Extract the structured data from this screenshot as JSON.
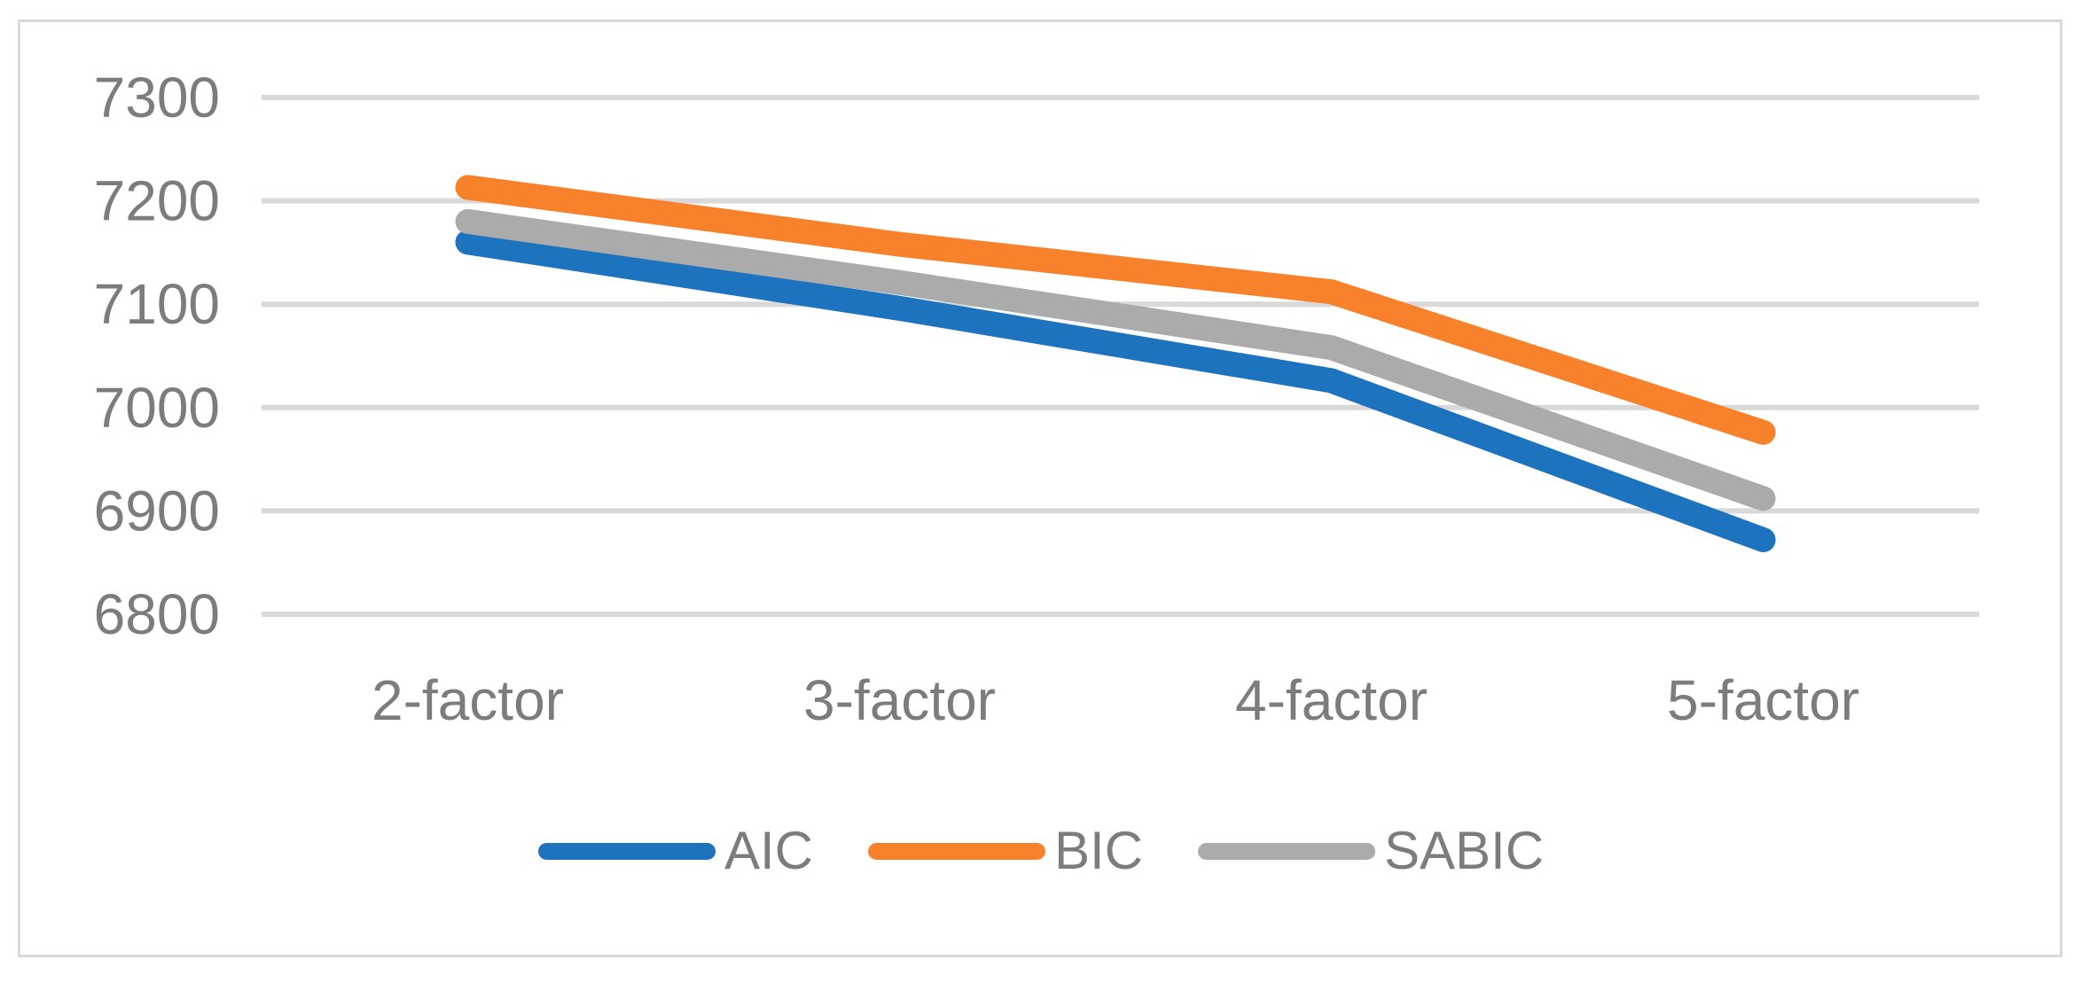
{
  "figure": {
    "background_color": "#FFFFFF",
    "border_color": "#D9D9D9",
    "title": ""
  },
  "chart_data": {
    "type": "line",
    "categories": [
      "2-factor",
      "3-factor",
      "4-factor",
      "5-factor"
    ],
    "series": [
      {
        "name": "AIC",
        "color": "#1E73BE",
        "values": [
          7160,
          7096,
          7026,
          6872
        ]
      },
      {
        "name": "BIC",
        "color": "#F8812B",
        "values": [
          7213,
          7158,
          7112,
          6976
        ]
      },
      {
        "name": "SABIC",
        "color": "#ABABAB",
        "values": [
          7180,
          7121,
          7058,
          6912
        ]
      }
    ],
    "title": "",
    "xlabel": "",
    "ylabel": "",
    "ylim": [
      6800,
      7300
    ],
    "y_ticks": [
      7300,
      7200,
      7100,
      7000,
      6900,
      6800
    ],
    "grid": "horizontal",
    "gridline_color": "#D9D9D9",
    "tick_label_color": "#7C7C7C",
    "legend_position": "bottom",
    "draw_order_note": "AIC drawn first, SABIC drawn last (on top)"
  }
}
